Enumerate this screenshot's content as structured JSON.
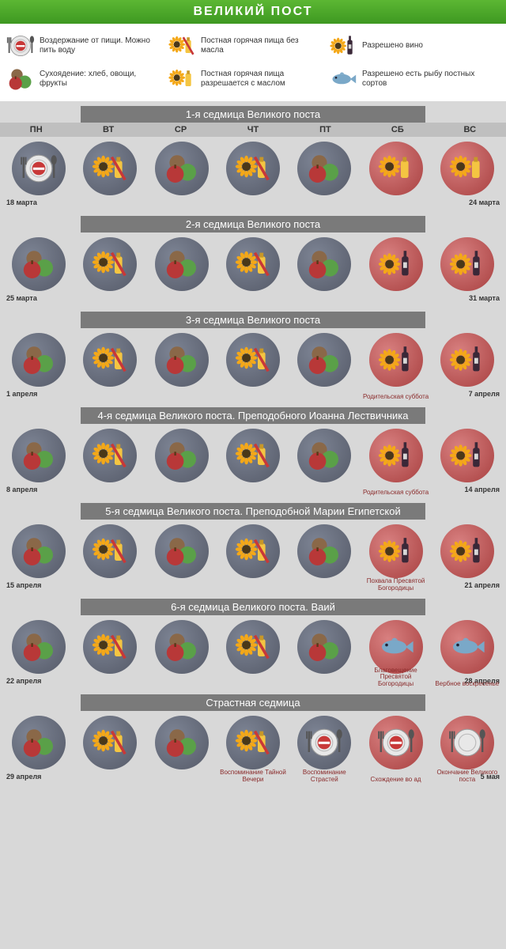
{
  "title": "ВЕЛИКИЙ  ПОСТ",
  "colors": {
    "header_grad_top": "#5cb733",
    "header_grad_bot": "#3e9821",
    "week_title_bg": "#7a7a7a",
    "dayhdr_bg": "#bfbfbf",
    "page_bg": "#d8d8d8",
    "circle_gray_a": "#7d8494",
    "circle_gray_b": "#555a68",
    "circle_red_a": "#d88080",
    "circle_red_b": "#a84040",
    "note_color": "#8a2a2a",
    "sunflower_petal": "#f4a818",
    "sunflower_center": "#4a3818",
    "oil_bottle": "#f4c542",
    "wine_bottle": "#3a2838",
    "fish_body": "#7aa8c8",
    "apple_red": "#b83838",
    "apple_green": "#5aa048",
    "nut": "#8a6848",
    "plate": "#e8e8e8",
    "fork_spoon": "#555",
    "no_entry": "#c83838"
  },
  "legend": [
    {
      "icon": "fasting",
      "label": "Воздержание от пищи. Можно пить воду"
    },
    {
      "icon": "hot_no_oil",
      "label": "Постная горячая пища без масла"
    },
    {
      "icon": "wine",
      "label": "Разрешено вино"
    },
    {
      "icon": "dry",
      "label": "Сухоядение: хлеб, овощи, фрукты"
    },
    {
      "icon": "hot_oil",
      "label": "Постная горячая пища разрешается с маслом"
    },
    {
      "icon": "fish",
      "label": "Разрешено есть рыбу постных сортов"
    }
  ],
  "day_headers": [
    "ПН",
    "ВТ",
    "СР",
    "ЧТ",
    "ПТ",
    "СБ",
    "ВС"
  ],
  "weeks": [
    {
      "title": "1-я седмица Великого поста",
      "show_headers": true,
      "days": [
        {
          "icon": "fasting",
          "bg": "gray",
          "date": "18 марта",
          "date_pos": "bl"
        },
        {
          "icon": "hot_no_oil",
          "bg": "gray"
        },
        {
          "icon": "dry",
          "bg": "gray"
        },
        {
          "icon": "hot_no_oil",
          "bg": "gray"
        },
        {
          "icon": "dry",
          "bg": "gray"
        },
        {
          "icon": "hot_oil",
          "bg": "red"
        },
        {
          "icon": "hot_oil",
          "bg": "red",
          "date": "24 марта",
          "date_pos": "br"
        }
      ]
    },
    {
      "title": "2-я седмица Великого поста",
      "days": [
        {
          "icon": "dry",
          "bg": "gray",
          "date": "25 марта",
          "date_pos": "bl"
        },
        {
          "icon": "hot_no_oil",
          "bg": "gray"
        },
        {
          "icon": "dry",
          "bg": "gray"
        },
        {
          "icon": "hot_no_oil",
          "bg": "gray"
        },
        {
          "icon": "dry",
          "bg": "gray"
        },
        {
          "icon": "wine",
          "bg": "red"
        },
        {
          "icon": "wine",
          "bg": "red",
          "date": "31 марта",
          "date_pos": "br"
        }
      ]
    },
    {
      "title": "3-я седмица Великого поста",
      "days": [
        {
          "icon": "dry",
          "bg": "gray",
          "date": "1 апреля",
          "date_pos": "bl"
        },
        {
          "icon": "hot_no_oil",
          "bg": "gray"
        },
        {
          "icon": "dry",
          "bg": "gray"
        },
        {
          "icon": "hot_no_oil",
          "bg": "gray"
        },
        {
          "icon": "dry",
          "bg": "gray"
        },
        {
          "icon": "wine",
          "bg": "red",
          "note": "Родительская суббота"
        },
        {
          "icon": "wine",
          "bg": "red",
          "date": "7 апреля",
          "date_pos": "br"
        }
      ]
    },
    {
      "title": "4-я седмица Великого поста. Преподобного Иоанна Лествичника",
      "days": [
        {
          "icon": "dry",
          "bg": "gray",
          "date": "8 апреля",
          "date_pos": "bl"
        },
        {
          "icon": "hot_no_oil",
          "bg": "gray"
        },
        {
          "icon": "dry",
          "bg": "gray"
        },
        {
          "icon": "hot_no_oil",
          "bg": "gray"
        },
        {
          "icon": "dry",
          "bg": "gray"
        },
        {
          "icon": "wine",
          "bg": "red",
          "note": "Родительская суббота"
        },
        {
          "icon": "wine",
          "bg": "red",
          "date": "14 апреля",
          "date_pos": "br"
        }
      ]
    },
    {
      "title": "5-я седмица Великого поста. Преподобной Марии Египетской",
      "days": [
        {
          "icon": "dry",
          "bg": "gray",
          "date": "15 апреля",
          "date_pos": "bl"
        },
        {
          "icon": "hot_no_oil",
          "bg": "gray"
        },
        {
          "icon": "dry",
          "bg": "gray"
        },
        {
          "icon": "hot_no_oil",
          "bg": "gray"
        },
        {
          "icon": "dry",
          "bg": "gray"
        },
        {
          "icon": "wine",
          "bg": "red",
          "note": "Похвала Пресвятой Богородицы"
        },
        {
          "icon": "wine",
          "bg": "red",
          "date": "21 апреля",
          "date_pos": "br"
        }
      ]
    },
    {
      "title": "6-я седмица Великого поста. Ваий",
      "days": [
        {
          "icon": "dry",
          "bg": "gray",
          "date": "22 апреля",
          "date_pos": "bl"
        },
        {
          "icon": "hot_no_oil",
          "bg": "gray"
        },
        {
          "icon": "dry",
          "bg": "gray"
        },
        {
          "icon": "hot_no_oil",
          "bg": "gray"
        },
        {
          "icon": "dry",
          "bg": "gray"
        },
        {
          "icon": "fish",
          "bg": "red",
          "note": "Благовещение Пресвятой Богородицы"
        },
        {
          "icon": "fish",
          "bg": "red",
          "date": "28 апреля",
          "date_pos": "br",
          "note": "Вербное воскресенье"
        }
      ]
    },
    {
      "title": "Страстная седмица",
      "days": [
        {
          "icon": "dry",
          "bg": "gray",
          "date": "29 апреля",
          "date_pos": "bl"
        },
        {
          "icon": "hot_no_oil",
          "bg": "gray"
        },
        {
          "icon": "dry",
          "bg": "gray"
        },
        {
          "icon": "hot_no_oil",
          "bg": "gray",
          "note": "Воспоминание Тайной Вечери"
        },
        {
          "icon": "fasting",
          "bg": "gray",
          "note": "Воспоминание Страстей"
        },
        {
          "icon": "fasting",
          "bg": "red",
          "note": "Схождение во ад"
        },
        {
          "icon": "plate_only",
          "bg": "red",
          "date": "5 мая",
          "date_pos": "br",
          "note": "Окончание Великого поста"
        }
      ]
    }
  ]
}
